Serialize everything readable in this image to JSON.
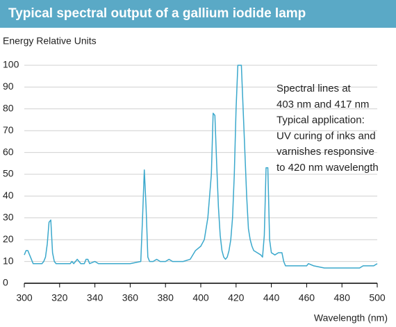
{
  "chart_data": {
    "type": "line",
    "title": "Typical spectral output of a gallium iodide lamp",
    "y_label": "Energy Relative Units",
    "x_label": "Wavelength (nm)",
    "annotation_lines": [
      "Spectral lines at",
      "403 nm and 417 nm",
      "Typical application:",
      "UV curing of inks and",
      "varnishes responsive",
      "to 420 nm wavelength"
    ],
    "x": [
      300,
      301,
      302,
      303,
      304,
      305,
      310,
      311,
      312,
      313,
      314,
      315,
      316,
      317,
      318,
      325,
      326,
      327,
      328,
      329,
      330,
      331,
      332,
      334,
      335,
      336,
      337,
      340,
      342,
      360,
      366,
      367,
      368,
      369,
      370,
      371,
      373,
      375,
      377,
      380,
      382,
      384,
      390,
      394,
      397,
      400,
      402,
      404,
      406,
      407,
      408,
      409,
      410,
      411,
      412,
      413,
      414,
      415,
      416,
      417,
      418,
      419,
      420,
      421,
      422,
      423,
      424,
      425,
      426,
      427,
      428,
      429,
      430,
      432,
      434,
      435,
      436,
      437,
      438,
      439,
      440,
      442,
      444,
      446,
      447,
      448,
      460,
      461,
      464,
      470,
      490,
      492,
      498,
      500
    ],
    "series": [
      {
        "color": "#3aa8cc",
        "values": [
          13,
          15,
          15,
          13,
          11,
          9,
          9,
          10,
          12,
          18,
          28,
          29,
          14,
          10,
          9,
          9,
          9,
          10,
          9,
          10,
          11,
          10,
          9,
          9,
          11,
          11,
          9,
          10,
          9,
          9,
          10,
          30,
          52,
          35,
          12,
          10,
          10,
          11,
          10,
          10,
          11,
          10,
          10,
          11,
          15,
          17,
          20,
          30,
          50,
          78,
          77,
          55,
          35,
          22,
          15,
          12,
          11,
          12,
          15,
          20,
          30,
          50,
          80,
          100,
          100,
          100,
          80,
          60,
          40,
          25,
          20,
          17,
          15,
          14,
          13,
          12,
          22,
          53,
          53,
          20,
          14,
          13,
          14,
          14,
          10,
          8,
          8,
          9,
          8,
          7,
          7,
          8,
          8,
          9
        ]
      }
    ],
    "xlim": [
      300,
      500
    ],
    "ylim": [
      0,
      100
    ],
    "xticks": [
      300,
      320,
      340,
      360,
      380,
      400,
      420,
      440,
      460,
      480,
      500
    ],
    "yticks": [
      0,
      10,
      20,
      30,
      40,
      50,
      60,
      70,
      80,
      90,
      100
    ],
    "grid": true
  }
}
